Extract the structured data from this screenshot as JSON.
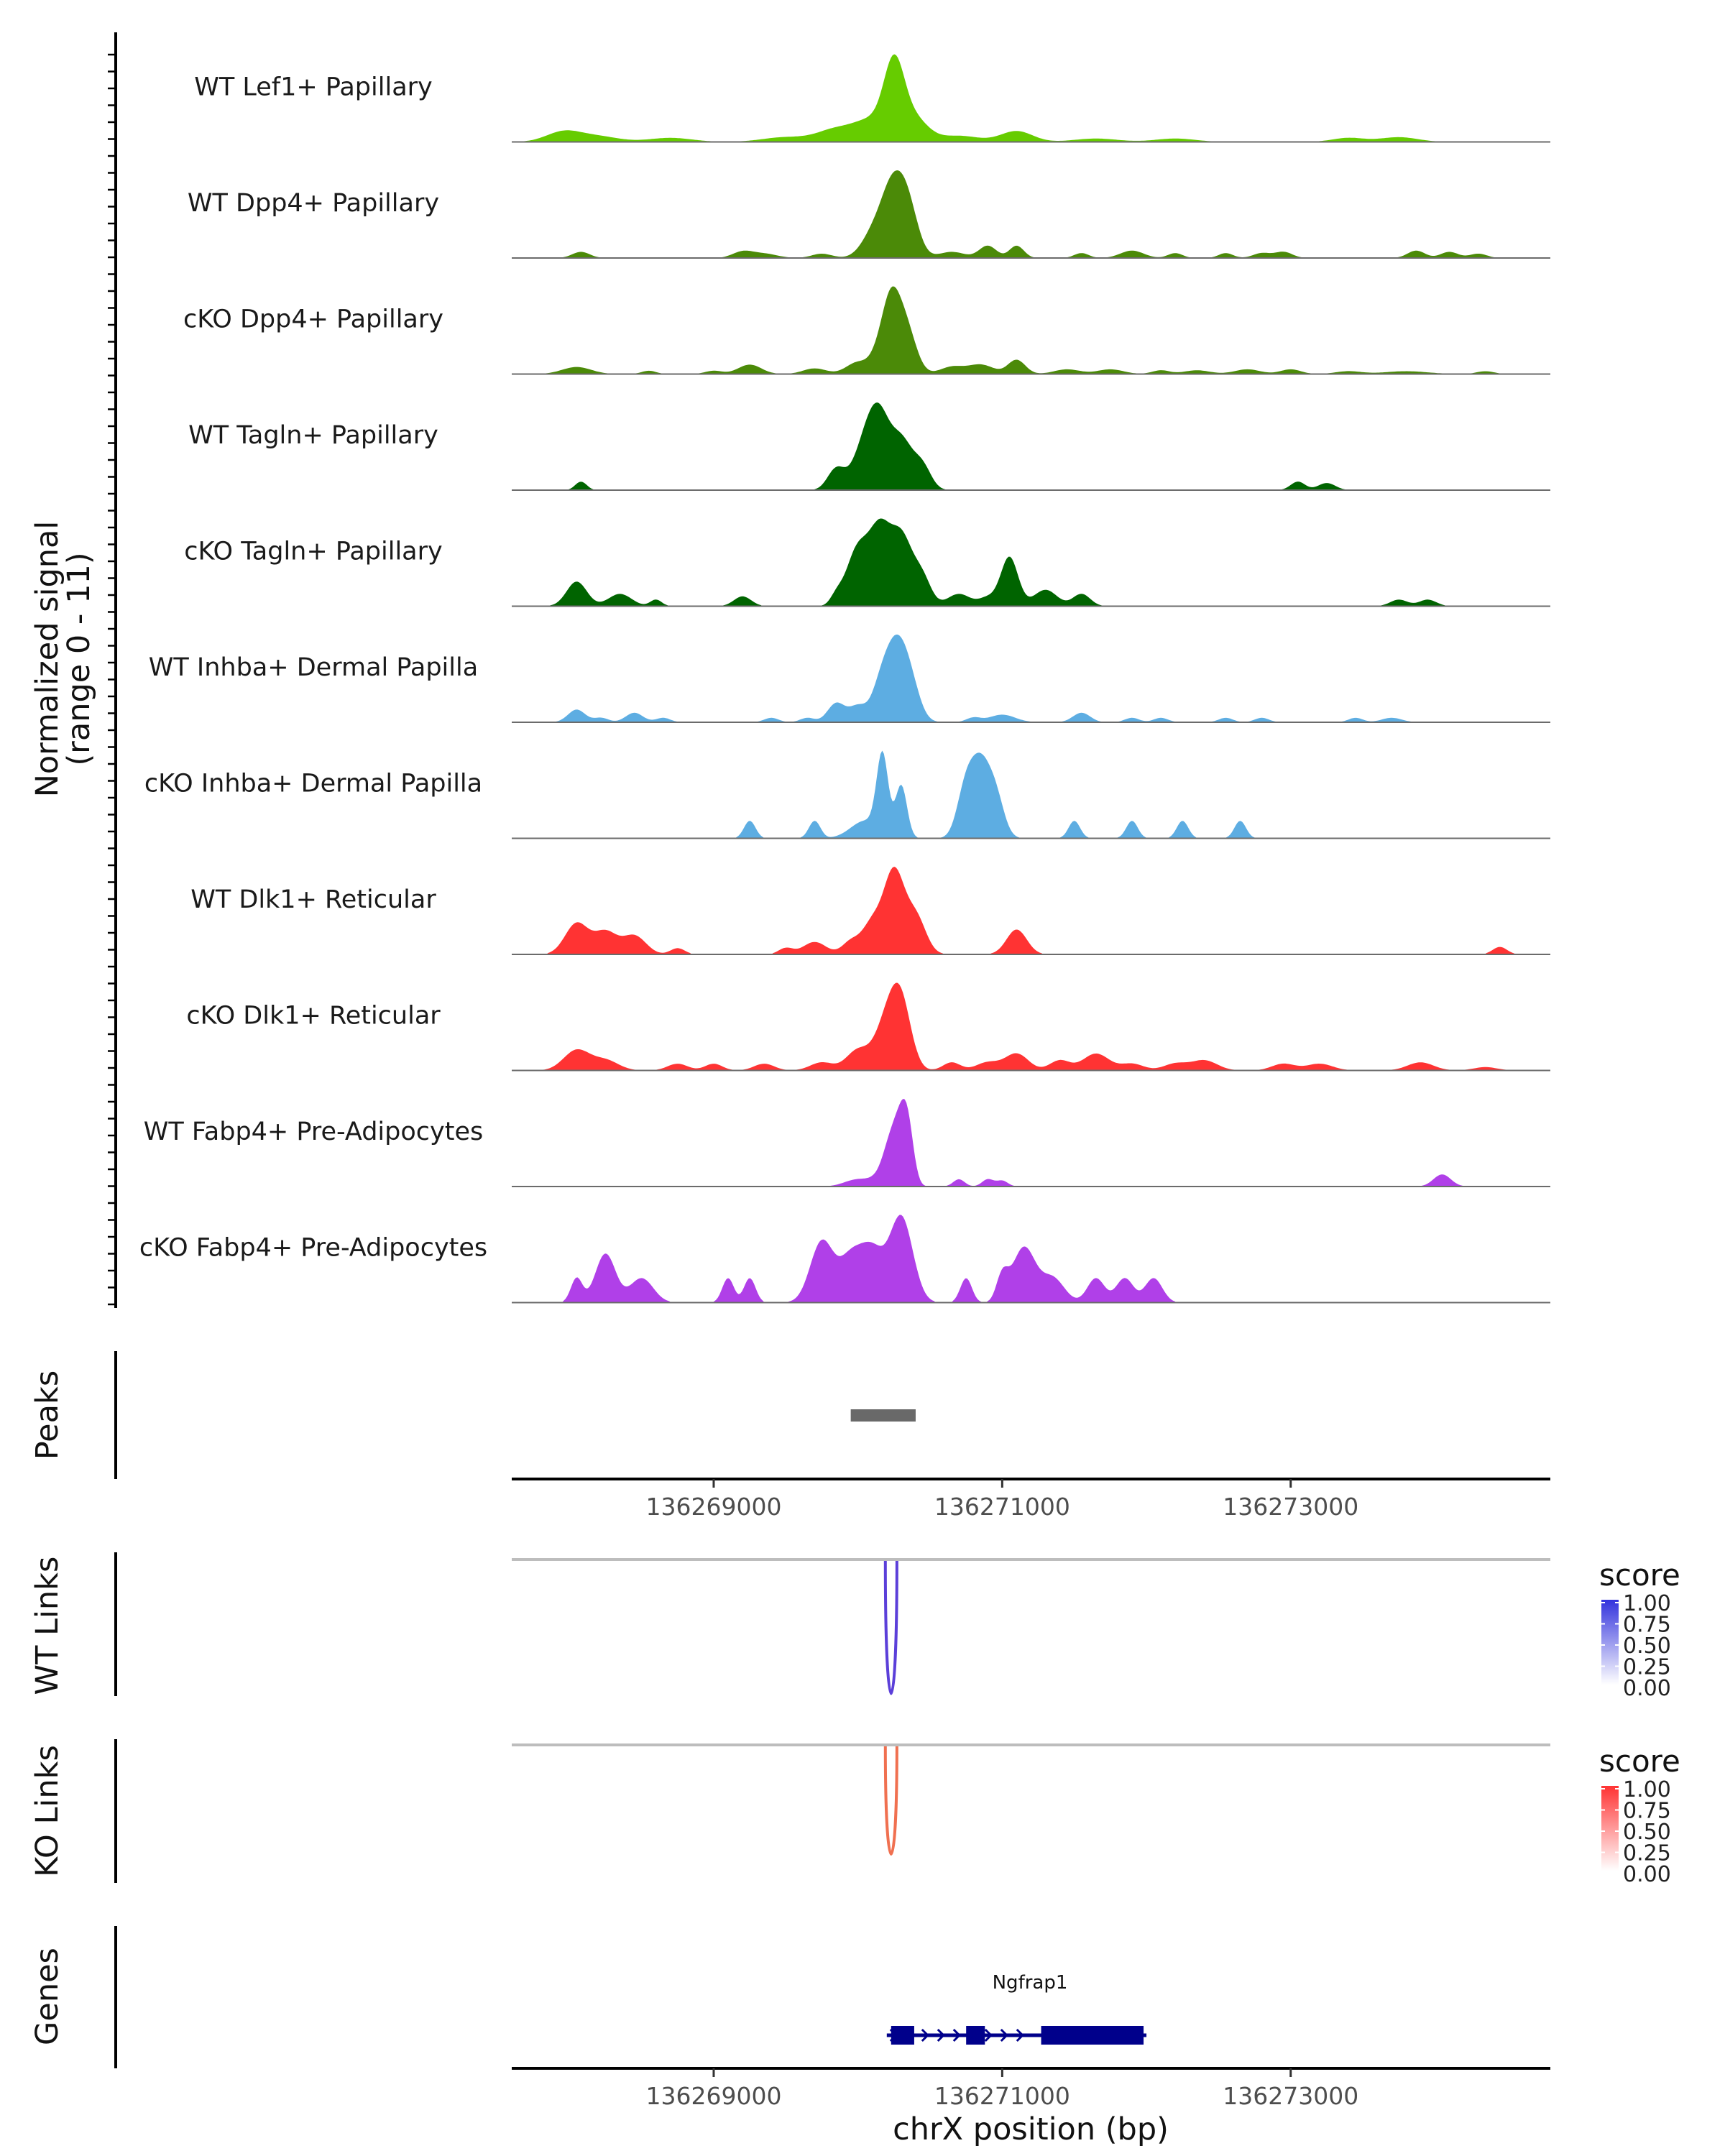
{
  "chart_data": {
    "type": "area",
    "chromosome": "chrX",
    "xlabel": "chrX position (bp)",
    "ylabel_line1": "Normalized signal",
    "ylabel_line2": "(range 0 - 11)",
    "xlim": [
      136267600,
      136274800
    ],
    "x_ticks": [
      136269000,
      136271000,
      136273000
    ],
    "x_tick_labels": [
      "136269000",
      "136271000",
      "136273000"
    ],
    "signal_range": [
      0,
      11
    ],
    "tracks": [
      {
        "name": "WT Lef1+ Papillary",
        "color": "#66cc00",
        "peaks": [
          [
            136267960,
            1.5,
            120
          ],
          [
            136268200,
            0.8,
            140
          ],
          [
            136268700,
            0.6,
            150
          ],
          [
            136269500,
            0.7,
            160
          ],
          [
            136269850,
            1.8,
            130
          ],
          [
            136270100,
            3.0,
            120
          ],
          [
            136270250,
            10.0,
            70
          ],
          [
            136270380,
            3.5,
            100
          ],
          [
            136270700,
            0.9,
            140
          ],
          [
            136271100,
            1.6,
            110
          ],
          [
            136271650,
            0.5,
            150
          ],
          [
            136272200,
            0.5,
            140
          ],
          [
            136273400,
            0.6,
            110
          ],
          [
            136273750,
            0.7,
            130
          ]
        ]
      },
      {
        "name": "WT Dpp4+ Papillary",
        "color": "#4b8a08",
        "peaks": [
          [
            136268080,
            1.0,
            60
          ],
          [
            136269200,
            1.0,
            70
          ],
          [
            136269350,
            0.7,
            90
          ],
          [
            136269750,
            0.7,
            70
          ],
          [
            136270100,
            3.5,
            80
          ],
          [
            136270240,
            11.0,
            80
          ],
          [
            136270350,
            7.0,
            70
          ],
          [
            136270650,
            1.0,
            90
          ],
          [
            136270900,
            2.0,
            60
          ],
          [
            136271100,
            2.0,
            50
          ],
          [
            136271550,
            0.8,
            50
          ],
          [
            136271900,
            1.2,
            80
          ],
          [
            136272200,
            0.8,
            50
          ],
          [
            136272550,
            0.8,
            50
          ],
          [
            136272800,
            0.8,
            60
          ],
          [
            136272950,
            1.0,
            60
          ],
          [
            136273870,
            1.2,
            60
          ],
          [
            136274100,
            1.0,
            60
          ],
          [
            136274300,
            0.7,
            60
          ]
        ]
      },
      {
        "name": "cKO Dpp4+ Papillary",
        "color": "#4b8a08",
        "peaks": [
          [
            136268050,
            1.5,
            100
          ],
          [
            136268550,
            0.7,
            50
          ],
          [
            136269000,
            0.7,
            60
          ],
          [
            136269250,
            2.0,
            80
          ],
          [
            136269700,
            1.2,
            80
          ],
          [
            136270000,
            2.5,
            80
          ],
          [
            136270150,
            4.0,
            60
          ],
          [
            136270230,
            13.0,
            60
          ],
          [
            136270330,
            10.0,
            70
          ],
          [
            136270650,
            1.5,
            80
          ],
          [
            136270850,
            2.0,
            90
          ],
          [
            136271100,
            3.0,
            60
          ],
          [
            136271450,
            1.0,
            90
          ],
          [
            136271750,
            1.0,
            90
          ],
          [
            136272100,
            0.8,
            60
          ],
          [
            136272350,
            0.8,
            90
          ],
          [
            136272700,
            1.0,
            90
          ],
          [
            136273000,
            1.0,
            70
          ],
          [
            136273400,
            0.6,
            90
          ],
          [
            136273800,
            0.6,
            150
          ],
          [
            136274350,
            0.6,
            60
          ]
        ]
      },
      {
        "name": "WT Tagln+ Papillary",
        "color": "#006400",
        "peaks": [
          [
            136268080,
            1.2,
            40
          ],
          [
            136269850,
            3.0,
            60
          ],
          [
            136270050,
            6.5,
            80
          ],
          [
            136270150,
            8.0,
            70
          ],
          [
            136270300,
            7.0,
            80
          ],
          [
            136270450,
            3.0,
            60
          ],
          [
            136273050,
            1.2,
            50
          ],
          [
            136273250,
            1.0,
            60
          ]
        ]
      },
      {
        "name": "cKO Tagln+ Papillary",
        "color": "#006400",
        "peaks": [
          [
            136268050,
            3.0,
            70
          ],
          [
            136268350,
            1.5,
            80
          ],
          [
            136268600,
            0.8,
            40
          ],
          [
            136269200,
            1.2,
            60
          ],
          [
            136269850,
            1.0,
            40
          ],
          [
            136270000,
            7.0,
            80
          ],
          [
            136270150,
            8.0,
            70
          ],
          [
            136270300,
            8.5,
            80
          ],
          [
            136270450,
            3.0,
            60
          ],
          [
            136270700,
            1.5,
            80
          ],
          [
            136270900,
            1.0,
            60
          ],
          [
            136271050,
            6.0,
            60
          ],
          [
            136271300,
            2.0,
            80
          ],
          [
            136271550,
            1.5,
            60
          ],
          [
            136273750,
            0.8,
            60
          ],
          [
            136273950,
            0.8,
            60
          ]
        ]
      },
      {
        "name": "WT Inhba+ Dermal Papilla",
        "color": "#5dade2",
        "peaks": [
          [
            136268050,
            2.0,
            60
          ],
          [
            136268220,
            0.7,
            50
          ],
          [
            136268450,
            1.5,
            60
          ],
          [
            136268650,
            0.7,
            50
          ],
          [
            136269400,
            0.7,
            50
          ],
          [
            136269650,
            0.7,
            50
          ],
          [
            136269850,
            3.0,
            60
          ],
          [
            136270000,
            2.5,
            60
          ],
          [
            136270150,
            4.5,
            60
          ],
          [
            136270250,
            10.0,
            70
          ],
          [
            136270350,
            7.0,
            70
          ],
          [
            136270800,
            0.7,
            50
          ],
          [
            136271000,
            1.2,
            90
          ],
          [
            136271550,
            1.5,
            60
          ],
          [
            136271900,
            0.7,
            50
          ],
          [
            136272100,
            0.7,
            50
          ],
          [
            136272550,
            0.7,
            50
          ],
          [
            136272800,
            0.7,
            50
          ],
          [
            136273450,
            0.7,
            50
          ],
          [
            136273700,
            0.7,
            70
          ]
        ]
      },
      {
        "name": "cKO Inhba+ Dermal Papilla",
        "color": "#5dade2",
        "peaks": [
          [
            136269250,
            2.0,
            40
          ],
          [
            136269700,
            2.0,
            40
          ],
          [
            136270050,
            2.0,
            100
          ],
          [
            136270170,
            9.0,
            40
          ],
          [
            136270300,
            6.0,
            40
          ],
          [
            136270750,
            6.0,
            60
          ],
          [
            136270850,
            7.0,
            60
          ],
          [
            136270950,
            5.0,
            60
          ],
          [
            136271500,
            2.0,
            40
          ],
          [
            136271900,
            2.0,
            40
          ],
          [
            136272250,
            2.0,
            40
          ],
          [
            136272650,
            2.0,
            40
          ]
        ]
      },
      {
        "name": "WT Dlk1+ Reticular",
        "color": "#ff3333",
        "peaks": [
          [
            136268050,
            2.5,
            80
          ],
          [
            136268250,
            1.8,
            80
          ],
          [
            136268450,
            1.5,
            80
          ],
          [
            136268750,
            0.5,
            50
          ],
          [
            136269500,
            0.5,
            50
          ],
          [
            136269700,
            1.0,
            80
          ],
          [
            136269950,
            1.0,
            60
          ],
          [
            136270100,
            2.5,
            70
          ],
          [
            136270250,
            6.5,
            70
          ],
          [
            136270400,
            3.0,
            70
          ],
          [
            136271100,
            2.0,
            70
          ],
          [
            136274450,
            0.6,
            50
          ]
        ]
      },
      {
        "name": "cKO Dlk1+ Reticular",
        "color": "#ff3333",
        "peaks": [
          [
            136268050,
            3.0,
            90
          ],
          [
            136268250,
            1.5,
            90
          ],
          [
            136268750,
            1.0,
            70
          ],
          [
            136269000,
            1.0,
            60
          ],
          [
            136269350,
            1.0,
            70
          ],
          [
            136269750,
            1.2,
            80
          ],
          [
            136270000,
            3.0,
            80
          ],
          [
            136270200,
            7.0,
            80
          ],
          [
            136270300,
            9.0,
            70
          ],
          [
            136270650,
            1.2,
            60
          ],
          [
            136270900,
            1.2,
            80
          ],
          [
            136271100,
            2.5,
            80
          ],
          [
            136271400,
            1.5,
            70
          ],
          [
            136271650,
            2.5,
            90
          ],
          [
            136271900,
            1.0,
            80
          ],
          [
            136272200,
            1.0,
            80
          ],
          [
            136272400,
            1.5,
            90
          ],
          [
            136272950,
            1.0,
            80
          ],
          [
            136273200,
            1.0,
            90
          ],
          [
            136273900,
            1.2,
            90
          ],
          [
            136274350,
            0.5,
            80
          ]
        ]
      },
      {
        "name": "WT Fabp4+ Pre-Adipocytes",
        "color": "#b040e8",
        "peaks": [
          [
            136270000,
            1.5,
            90
          ],
          [
            136270150,
            1.5,
            60
          ],
          [
            136270220,
            7.0,
            50
          ],
          [
            136270300,
            12.0,
            50
          ],
          [
            136270350,
            8.0,
            40
          ],
          [
            136270700,
            1.5,
            40
          ],
          [
            136270900,
            1.5,
            40
          ],
          [
            136271000,
            1.2,
            40
          ],
          [
            136274050,
            2.5,
            60
          ]
        ]
      },
      {
        "name": "cKO Fabp4+ Pre-Adipocytes",
        "color": "#b040e8",
        "peaks": [
          [
            136268050,
            2.0,
            40
          ],
          [
            136268250,
            4.0,
            70
          ],
          [
            136268500,
            2.0,
            80
          ],
          [
            136269100,
            2.0,
            40
          ],
          [
            136269250,
            2.0,
            40
          ],
          [
            136269750,
            5.0,
            80
          ],
          [
            136269950,
            3.5,
            80
          ],
          [
            136270100,
            4.0,
            80
          ],
          [
            136270300,
            7.0,
            80
          ],
          [
            136270750,
            2.0,
            40
          ],
          [
            136271000,
            2.0,
            40
          ],
          [
            136271150,
            4.5,
            80
          ],
          [
            136271350,
            2.0,
            80
          ],
          [
            136271650,
            2.0,
            60
          ],
          [
            136271850,
            2.0,
            60
          ],
          [
            136272050,
            2.0,
            60
          ]
        ]
      }
    ],
    "peaks_track": {
      "label": "Peaks",
      "regions": [
        [
          136269950,
          136270400
        ]
      ],
      "color": "#696969"
    },
    "links_wt": {
      "label": "WT Links",
      "legend_title": "score",
      "legend_ticks": [
        "1.00",
        "0.75",
        "0.50",
        "0.25",
        "0.00"
      ],
      "color": "#3333dd",
      "link_color": "#5b3fd9",
      "arcs": [
        [
          136270190,
          136270270,
          0.8
        ]
      ]
    },
    "links_ko": {
      "label": "KO Links",
      "legend_title": "score",
      "legend_ticks": [
        "1.00",
        "0.75",
        "0.50",
        "0.25",
        "0.00"
      ],
      "color": "#ff3333",
      "link_color": "#f07050",
      "arcs": [
        [
          136270190,
          136270270,
          0.65
        ]
      ]
    },
    "genes": {
      "label": "Genes",
      "color": "#00008b",
      "gene": {
        "name": "Ngfrap1",
        "start": 136270200,
        "end": 136272000,
        "exons": [
          [
            136270230,
            136270390
          ],
          [
            136270750,
            136270880
          ],
          [
            136271270,
            136271980
          ]
        ]
      }
    }
  }
}
